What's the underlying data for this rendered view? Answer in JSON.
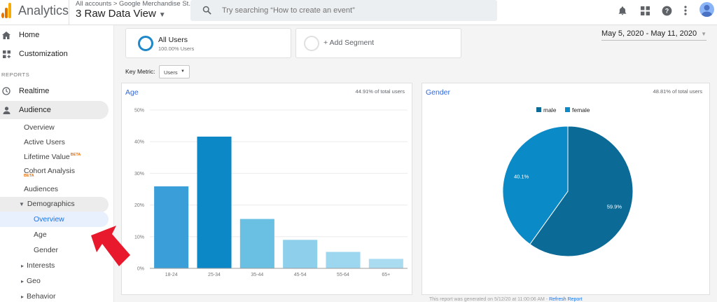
{
  "header": {
    "app_name": "Analytics",
    "breadcrumb": "All accounts > Google Merchandise St...",
    "view_title": "3 Raw Data View",
    "search_placeholder": "Try searching “How to create an event”"
  },
  "icons": {
    "search": "search-icon",
    "notifications": "bell-icon",
    "apps": "apps-grid-icon",
    "help": "help-icon",
    "more": "more-vert-icon",
    "account": "avatar"
  },
  "sidebar": {
    "home": "Home",
    "customization": "Customization",
    "reports_label": "REPORTS",
    "realtime": "Realtime",
    "audience": "Audience",
    "audience_items": {
      "overview": "Overview",
      "active_users": "Active Users",
      "lifetime_value": "Lifetime Value",
      "lifetime_value_badge": "BETA",
      "cohort_analysis": "Cohort Analysis",
      "cohort_badge": "BETA",
      "audiences": "Audiences",
      "demographics": "Demographics",
      "demo_overview": "Overview",
      "demo_age": "Age",
      "demo_gender": "Gender",
      "interests": "Interests",
      "geo": "Geo",
      "behavior": "Behavior"
    }
  },
  "main": {
    "segments": {
      "active_name": "All Users",
      "active_sub": "100.00% Users",
      "add_label": "+ Add Segment"
    },
    "date_range": "May 5, 2020 - May 11, 2020",
    "key_metric_label": "Key Metric:",
    "key_metric_value": "Users",
    "footer_text": "This report was generated on 5/12/20 at 11:00:06 AM -",
    "footer_link": "Refresh Report"
  },
  "colors": {
    "accent_blue": "#1a73e8",
    "bar_colors": [
      "#3a9ed8",
      "#0d88c6",
      "#6ac0e3",
      "#8ecfec",
      "#9dd6ef",
      "#a9dbf1"
    ],
    "male": "#0b6a96",
    "female": "#0a8bc7",
    "arrow": "#e8192c"
  },
  "chart_data": [
    {
      "type": "bar",
      "title": "Age",
      "subtitle": "44.91% of total users",
      "categories": [
        "18-24",
        "25-34",
        "35-44",
        "45-54",
        "55-64",
        "65+"
      ],
      "values": [
        25.9,
        41.6,
        15.6,
        9.0,
        5.2,
        3.0
      ],
      "ylim": [
        0,
        50
      ],
      "yticks": [
        "0%",
        "10%",
        "20%",
        "30%",
        "40%",
        "50%"
      ],
      "grid": true
    },
    {
      "type": "pie",
      "title": "Gender",
      "subtitle": "48.81% of total users",
      "labels": [
        "male",
        "female"
      ],
      "values": [
        59.9,
        40.1
      ],
      "slice_labels": [
        "59.9%",
        "40.1%"
      ],
      "legend": "top"
    }
  ]
}
